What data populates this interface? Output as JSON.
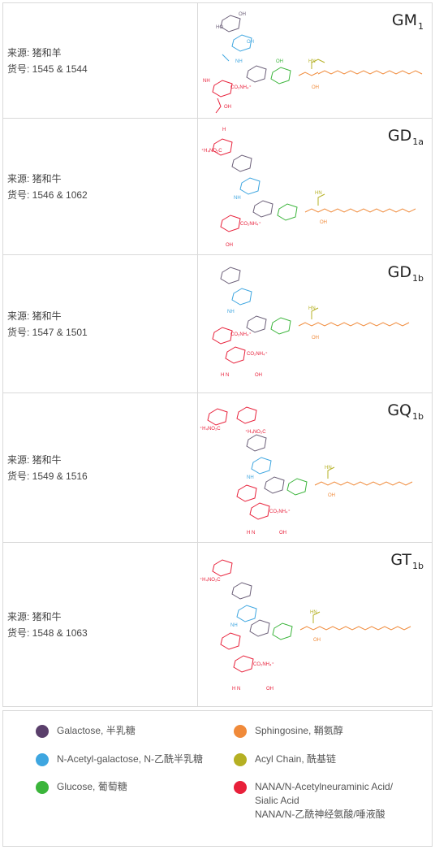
{
  "gangliosides": [
    {
      "name": "GM",
      "subscript": "1",
      "source": "来源: 猪和羊",
      "catalog": "货号: 1545 & 1544"
    },
    {
      "name": "GD",
      "subscript": "1a",
      "source": "来源: 猪和牛",
      "catalog": "货号: 1546 & 1062"
    },
    {
      "name": "GD",
      "subscript": "1b",
      "source": "来源: 猪和牛",
      "catalog": "货号: 1547 & 1501"
    },
    {
      "name": "GQ",
      "subscript": "1b",
      "source": "来源: 猪和牛",
      "catalog": "货号: 1549 & 1516"
    },
    {
      "name": "GT",
      "subscript": "1b",
      "source": "来源: 猪和牛",
      "catalog": "货号: 1548 & 1063"
    }
  ],
  "legend": [
    {
      "label": "Galactose, 半乳糖",
      "color": "#5a3f6b"
    },
    {
      "label": "Sphingosine, 鞘氨醇",
      "color": "#f08a3a"
    },
    {
      "label": "N-Acetyl-galactose, N-乙酰半乳糖",
      "color": "#3ea6e0"
    },
    {
      "label": "Acyl Chain, 酰基链",
      "color": "#b5b023"
    },
    {
      "label": "Glucose, 葡萄糖",
      "color": "#3bb53b"
    },
    {
      "label": "NANA/N-Acetylneuraminic Acid/",
      "label2": "Sialic Acid",
      "label3": "NANA/N-乙酰神经氨酸/唾液酸",
      "color": "#e8203a"
    }
  ]
}
